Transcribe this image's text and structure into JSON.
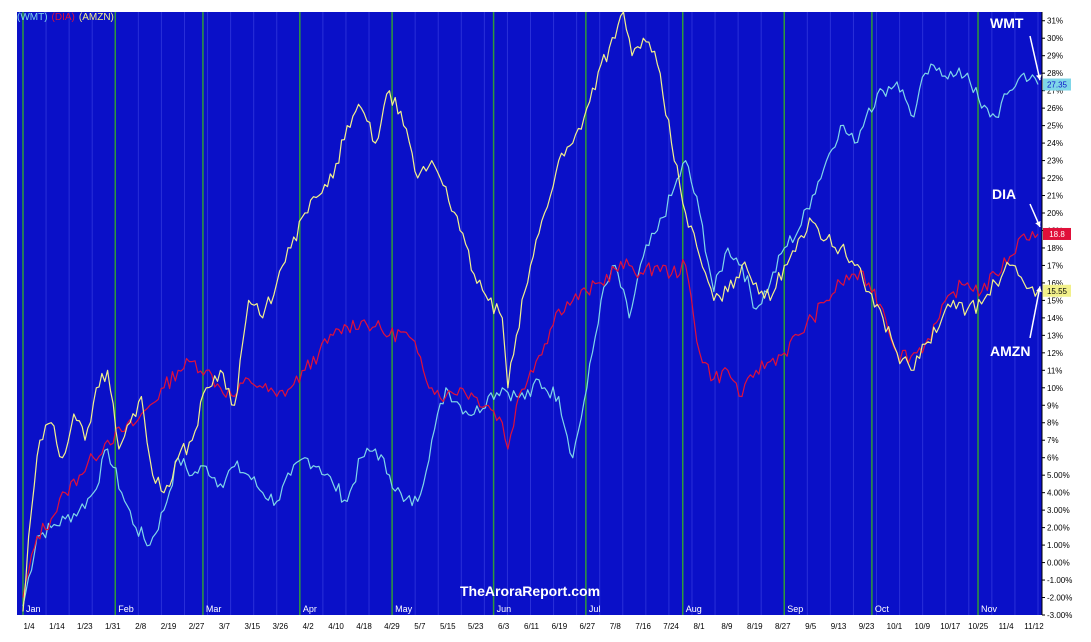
{
  "colors": {
    "background": "#0a10c8",
    "frame": "#ffffff",
    "wmt": "#7fd6e8",
    "dia": "#e0103a",
    "amzn": "#f2f08a",
    "month_grid": "#2e9a3a",
    "week_grid": "#2a30d8",
    "text": "#ffffff"
  },
  "legend": {
    "wmt": "(WMT)",
    "dia": "(DIA)",
    "amzn": "(AMZN)"
  },
  "callouts": {
    "wmt": "WMT",
    "dia": "DIA",
    "amzn": "AMZN"
  },
  "watermark": "TheAroraReport.com",
  "last_value_tags": {
    "wmt": "27.35",
    "dia": "18.8",
    "amzn": "15.55"
  },
  "chart_data": {
    "type": "line",
    "ylim": [
      -3,
      31.5
    ],
    "y_ticks": [
      "31%",
      "30%",
      "29%",
      "28%",
      "27%",
      "26%",
      "25%",
      "24%",
      "23%",
      "22%",
      "21%",
      "20%",
      "19%",
      "18%",
      "17%",
      "16%",
      "15%",
      "14%",
      "13%",
      "12%",
      "11%",
      "10%",
      "9%",
      "8%",
      "7%",
      "6%",
      "5.00%",
      "4.00%",
      "3.00%",
      "2.00%",
      "1.00%",
      "0.00%",
      "-1.00%",
      "-2.00%",
      "-3.00%"
    ],
    "y_tick_values": [
      31,
      30,
      29,
      28,
      27,
      26,
      25,
      24,
      23,
      22,
      21,
      20,
      19,
      18,
      17,
      16,
      15,
      14,
      13,
      12,
      11,
      10,
      9,
      8,
      7,
      6,
      5,
      4,
      3,
      2,
      1,
      0,
      -1,
      -2,
      -3
    ],
    "x_date_labels": [
      "1/4",
      "1/14",
      "1/23",
      "1/31",
      "2/8",
      "2/19",
      "2/27",
      "3/7",
      "3/15",
      "3/26",
      "4/2",
      "4/10",
      "4/18",
      "4/29",
      "5/7",
      "5/15",
      "5/23",
      "6/3",
      "6/11",
      "6/19",
      "6/27",
      "7/8",
      "7/16",
      "7/24",
      "8/1",
      "8/9",
      "8/19",
      "8/27",
      "9/5",
      "9/13",
      "9/23",
      "10/1",
      "10/9",
      "10/17",
      "10/25",
      "11/4",
      "11/12"
    ],
    "x_month_labels": [
      "Jan",
      "Feb",
      "Mar",
      "Apr",
      "May",
      "Jun",
      "Jul",
      "Aug",
      "Sep",
      "Oct",
      "Nov"
    ],
    "n_sessions": 221,
    "month_start_sessions": [
      0,
      20,
      39,
      60,
      80,
      102,
      122,
      143,
      165,
      184,
      207
    ],
    "series": [
      {
        "name": "WMT",
        "anchors": [
          [
            0,
            -2.5
          ],
          [
            5,
            1.5
          ],
          [
            10,
            2
          ],
          [
            15,
            2.5
          ],
          [
            20,
            3
          ],
          [
            25,
            4
          ],
          [
            30,
            6.5
          ],
          [
            35,
            4
          ],
          [
            40,
            2
          ],
          [
            45,
            1
          ],
          [
            50,
            3
          ],
          [
            55,
            6
          ],
          [
            60,
            5
          ],
          [
            65,
            5.5
          ],
          [
            70,
            4.5
          ],
          [
            75,
            5.5
          ],
          [
            80,
            5
          ],
          [
            85,
            4
          ],
          [
            90,
            3.5
          ],
          [
            95,
            5
          ],
          [
            100,
            6
          ],
          [
            105,
            5.5
          ],
          [
            110,
            4.5
          ],
          [
            115,
            3.5
          ],
          [
            120,
            6
          ],
          [
            125,
            6.5
          ],
          [
            130,
            5
          ],
          [
            135,
            3.5
          ],
          [
            140,
            3.5
          ],
          [
            145,
            7
          ],
          [
            150,
            10
          ],
          [
            155,
            9
          ],
          [
            160,
            8.5
          ],
          [
            165,
            9.5
          ],
          [
            170,
            10
          ],
          [
            175,
            9.5
          ],
          [
            180,
            9.5
          ],
          [
            182,
            10.5
          ],
          [
            185,
            10
          ],
          [
            190,
            9.5
          ],
          [
            195,
            6
          ],
          [
            200,
            10
          ],
          [
            205,
            15
          ],
          [
            210,
            17
          ],
          [
            215,
            14
          ],
          [
            220,
            17.5
          ],
          [
            225,
            19
          ],
          [
            230,
            21
          ],
          [
            235,
            23
          ],
          [
            240,
            20
          ],
          [
            245,
            15.5
          ],
          [
            250,
            18
          ],
          [
            255,
            17
          ],
          [
            260,
            14.5
          ],
          [
            265,
            16
          ],
          [
            270,
            18
          ],
          [
            275,
            19
          ],
          [
            280,
            21
          ],
          [
            285,
            23
          ],
          [
            290,
            25
          ],
          [
            295,
            24
          ],
          [
            300,
            26
          ],
          [
            305,
            27
          ],
          [
            310,
            27.5
          ],
          [
            313,
            26.5
          ],
          [
            316,
            25.5
          ],
          [
            320,
            28
          ],
          [
            325,
            28.3
          ],
          [
            330,
            27.8
          ],
          [
            335,
            28
          ],
          [
            340,
            26
          ],
          [
            345,
            25.5
          ],
          [
            350,
            27
          ],
          [
            355,
            28
          ],
          [
            360,
            27.35
          ]
        ]
      },
      {
        "name": "DIA",
        "anchors": [
          [
            0,
            -2
          ],
          [
            5,
            1.5
          ],
          [
            10,
            2.5
          ],
          [
            15,
            4
          ],
          [
            20,
            5
          ],
          [
            25,
            6
          ],
          [
            30,
            7
          ],
          [
            35,
            7.5
          ],
          [
            40,
            8
          ],
          [
            45,
            9
          ],
          [
            50,
            10
          ],
          [
            55,
            11
          ],
          [
            60,
            11.5
          ],
          [
            65,
            11
          ],
          [
            70,
            10
          ],
          [
            75,
            9.5
          ],
          [
            80,
            10.5
          ],
          [
            85,
            10
          ],
          [
            90,
            9.5
          ],
          [
            95,
            10
          ],
          [
            100,
            11
          ],
          [
            105,
            12
          ],
          [
            110,
            13
          ],
          [
            115,
            13.5
          ],
          [
            120,
            13.8
          ],
          [
            125,
            13.5
          ],
          [
            130,
            13
          ],
          [
            135,
            13.2
          ],
          [
            140,
            12
          ],
          [
            145,
            10
          ],
          [
            150,
            9.5
          ],
          [
            155,
            10
          ],
          [
            160,
            9.5
          ],
          [
            165,
            9
          ],
          [
            170,
            8
          ],
          [
            172,
            6.5
          ],
          [
            175,
            9
          ],
          [
            180,
            11
          ],
          [
            185,
            12.5
          ],
          [
            190,
            14.5
          ],
          [
            195,
            15
          ],
          [
            200,
            15.5
          ],
          [
            205,
            16
          ],
          [
            210,
            16.8
          ],
          [
            215,
            17
          ],
          [
            220,
            16.5
          ],
          [
            225,
            17
          ],
          [
            230,
            16.5
          ],
          [
            235,
            17
          ],
          [
            240,
            12
          ],
          [
            245,
            10.5
          ],
          [
            250,
            11
          ],
          [
            255,
            9.5
          ],
          [
            260,
            11
          ],
          [
            265,
            11.5
          ],
          [
            270,
            12
          ],
          [
            275,
            13
          ],
          [
            280,
            14
          ],
          [
            285,
            15
          ],
          [
            290,
            16
          ],
          [
            295,
            16.5
          ],
          [
            300,
            16
          ],
          [
            305,
            14.5
          ],
          [
            310,
            12
          ],
          [
            315,
            11.8
          ],
          [
            320,
            12.5
          ],
          [
            325,
            14
          ],
          [
            330,
            15.5
          ],
          [
            335,
            16
          ],
          [
            340,
            15.5
          ],
          [
            345,
            16.5
          ],
          [
            350,
            17.5
          ],
          [
            355,
            18.8
          ],
          [
            360,
            18.8
          ]
        ]
      },
      {
        "name": "AMZN",
        "anchors": [
          [
            0,
            -2.8
          ],
          [
            3,
            3
          ],
          [
            6,
            7
          ],
          [
            10,
            8
          ],
          [
            14,
            6
          ],
          [
            18,
            8.5
          ],
          [
            22,
            7
          ],
          [
            26,
            10
          ],
          [
            30,
            11
          ],
          [
            34,
            6.5
          ],
          [
            38,
            8
          ],
          [
            42,
            9.5
          ],
          [
            46,
            5
          ],
          [
            50,
            4
          ],
          [
            55,
            6
          ],
          [
            60,
            7
          ],
          [
            65,
            10
          ],
          [
            70,
            11
          ],
          [
            75,
            9
          ],
          [
            80,
            15
          ],
          [
            85,
            14
          ],
          [
            90,
            16
          ],
          [
            95,
            18
          ],
          [
            100,
            20
          ],
          [
            105,
            21
          ],
          [
            110,
            22
          ],
          [
            115,
            25
          ],
          [
            120,
            26
          ],
          [
            125,
            24
          ],
          [
            130,
            27
          ],
          [
            135,
            25
          ],
          [
            140,
            22
          ],
          [
            145,
            23
          ],
          [
            150,
            21.5
          ],
          [
            155,
            19
          ],
          [
            160,
            16.5
          ],
          [
            165,
            15
          ],
          [
            170,
            14
          ],
          [
            172,
            10
          ],
          [
            175,
            13
          ],
          [
            180,
            17
          ],
          [
            185,
            20
          ],
          [
            190,
            23
          ],
          [
            195,
            24
          ],
          [
            200,
            26
          ],
          [
            205,
            28.5
          ],
          [
            210,
            30
          ],
          [
            213,
            31.5
          ],
          [
            216,
            29
          ],
          [
            220,
            30
          ],
          [
            225,
            28.5
          ],
          [
            230,
            24
          ],
          [
            235,
            20
          ],
          [
            240,
            17.5
          ],
          [
            245,
            15
          ],
          [
            250,
            15.5
          ],
          [
            255,
            17
          ],
          [
            260,
            16
          ],
          [
            265,
            15
          ],
          [
            270,
            17
          ],
          [
            275,
            18.5
          ],
          [
            280,
            19.5
          ],
          [
            285,
            18.5
          ],
          [
            290,
            18
          ],
          [
            295,
            17
          ],
          [
            300,
            15.5
          ],
          [
            305,
            14
          ],
          [
            310,
            12
          ],
          [
            315,
            11
          ],
          [
            320,
            12.5
          ],
          [
            325,
            13.5
          ],
          [
            330,
            15
          ],
          [
            335,
            14.5
          ],
          [
            340,
            14.8
          ],
          [
            345,
            16
          ],
          [
            350,
            17
          ],
          [
            355,
            16
          ],
          [
            360,
            15.55
          ]
        ]
      }
    ]
  }
}
